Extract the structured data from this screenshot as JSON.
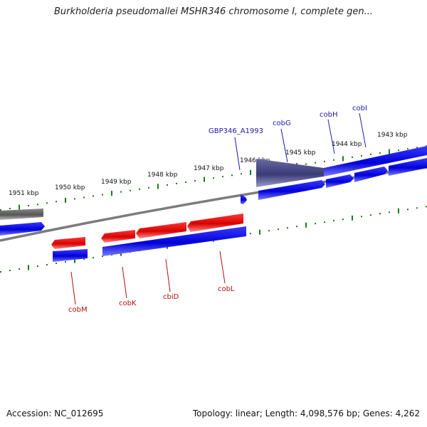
{
  "title": "Burkholderia pseudomallei MSHR346 chromosome I, complete gen...",
  "accession": "Accession: NC_012695",
  "topology": "Topology: linear; Length: 4,098,576 bp; Genes: 4,262",
  "scale_labels": [
    "1951 kbp",
    "1950 kbp",
    "1949 kbp",
    "1948 kbp",
    "1947 kbp",
    "1946 kbp",
    "1945 kbp",
    "1944 kbp",
    "1943 kbp"
  ],
  "genes_top": [
    "GBP346_A1993",
    "cobG",
    "cobH",
    "cobI"
  ],
  "genes_bottom": [
    "cobM",
    "cobK",
    "cbiD",
    "cobL"
  ],
  "colors": {
    "forward_cds": "#0000e0",
    "reverse_cds": "#e00000",
    "gene_bar": "#666666",
    "tick": "#1a7a1a",
    "backbone": "#808080"
  }
}
